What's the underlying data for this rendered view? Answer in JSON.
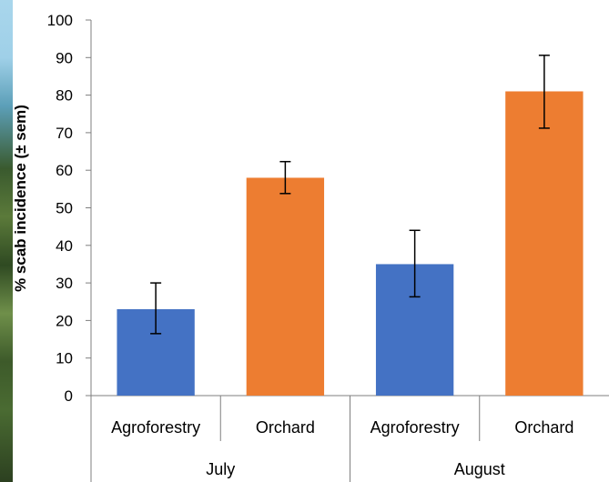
{
  "chart_data": {
    "type": "bar",
    "ylabel": "% scab incidence (± sem)",
    "ylim": [
      0,
      100
    ],
    "yticks": [
      0,
      10,
      20,
      30,
      40,
      50,
      60,
      70,
      80,
      90,
      100
    ],
    "groups": [
      {
        "label": "July",
        "bars": [
          {
            "category": "Agroforestry",
            "value": 23,
            "err_low": 16.5,
            "err_high": 30,
            "color": "#4472c4"
          },
          {
            "category": "Orchard",
            "value": 58,
            "err_low": 53.8,
            "err_high": 62.3,
            "color": "#ed7d31"
          }
        ]
      },
      {
        "label": "August",
        "bars": [
          {
            "category": "Agroforestry",
            "value": 35,
            "err_low": 26.3,
            "err_high": 44,
            "color": "#4472c4"
          },
          {
            "category": "Orchard",
            "value": 81,
            "err_low": 71.2,
            "err_high": 90.6,
            "color": "#ed7d31"
          }
        ]
      }
    ],
    "colors": {
      "agroforestry": "#4472c4",
      "orchard": "#ed7d31"
    },
    "grid": false,
    "legend": "none"
  }
}
